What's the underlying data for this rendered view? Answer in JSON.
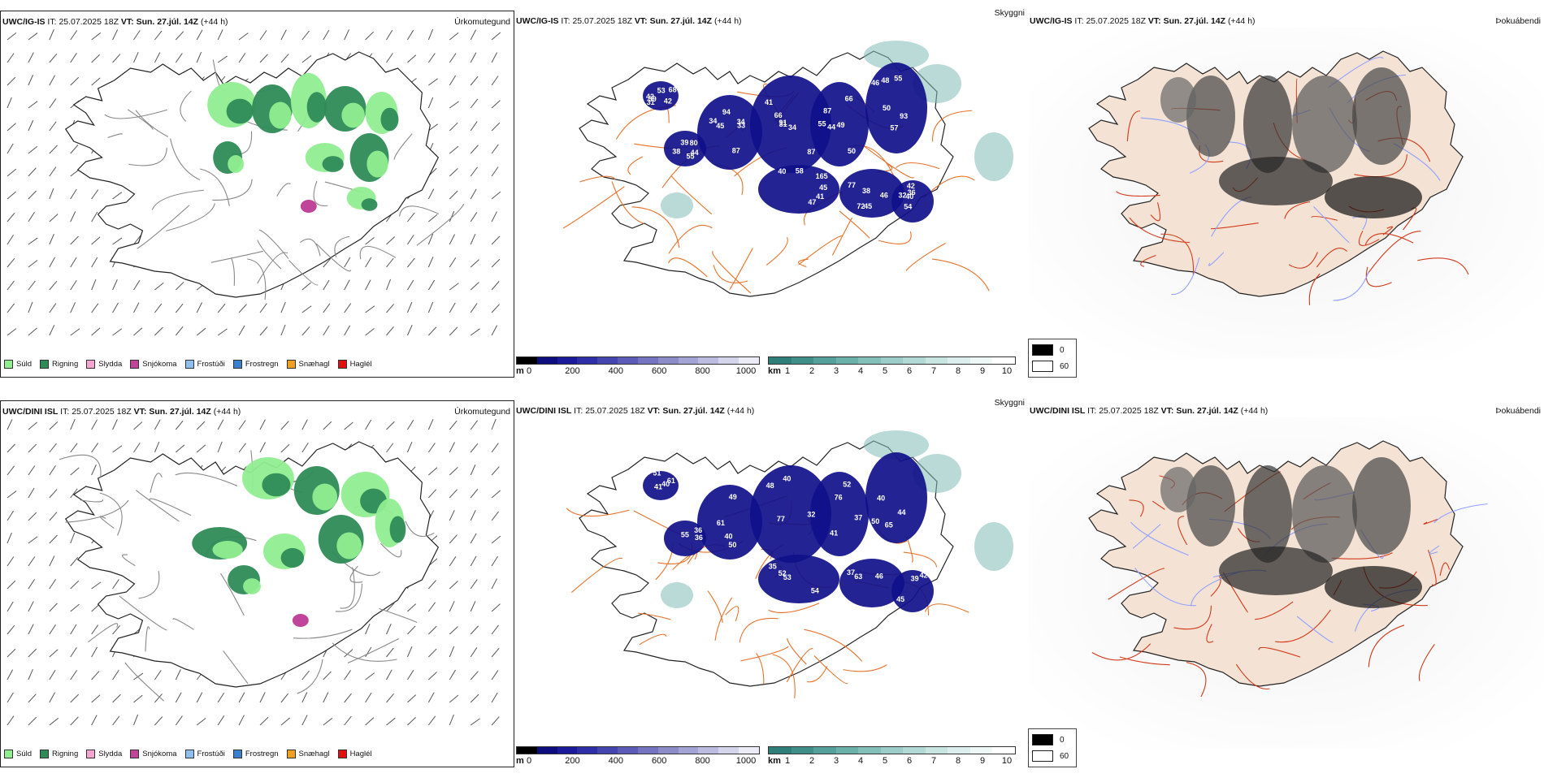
{
  "panels": [
    {
      "model": "UWC/IG-IS",
      "it_label": "IT:",
      "it_value": "25.07.2025 18Z",
      "vt_label": "VT:",
      "vt_value": "Sun. 27.júl. 14Z",
      "lead": "(+44 h)",
      "precip_title": "Úrkomutegund",
      "cloud_title": "Skyggni",
      "fog_title": "Þokuábendi",
      "cloud_labels": [
        "39",
        "87",
        "34",
        "55",
        "48",
        "40",
        "45",
        "40",
        "38",
        "53",
        "94",
        "87",
        "66",
        "93",
        "58",
        "38",
        "36",
        "39",
        "42",
        "34",
        "41",
        "44",
        "46",
        "47",
        "72",
        "42",
        "55",
        "68",
        "33",
        "66",
        "50",
        "50",
        "41",
        "77",
        "54",
        "80",
        "42",
        "45",
        "91",
        "87",
        "57",
        "45",
        "46",
        "32",
        "44",
        "31",
        "34",
        "31",
        "49",
        "55",
        "165"
      ]
    },
    {
      "model": "UWC/DINI ISL",
      "it_label": "IT:",
      "it_value": "25.07.2025 18Z",
      "vt_label": "VT:",
      "vt_value": "Sun. 27.júl. 14Z",
      "lead": "(+44 h)",
      "precip_title": "Úrkomutegund",
      "cloud_title": "Skyggni",
      "fog_title": "Þokuábendi",
      "cloud_labels": [
        "41",
        "61",
        "32",
        "76",
        "40",
        "53",
        "63",
        "45",
        "36",
        "61",
        "40",
        "48",
        "37",
        "44",
        "52",
        "46",
        "42",
        "55",
        "51",
        "50",
        "77",
        "41",
        "50",
        "35",
        "37",
        "39",
        "36",
        "40",
        "49",
        "40",
        "52",
        "65",
        "54"
      ]
    }
  ],
  "precip_legend": [
    {
      "label": "Súld",
      "color": "#90ee90"
    },
    {
      "label": "Rigning",
      "color": "#2e8b57"
    },
    {
      "label": "Slydda",
      "color": "#f4a6cf"
    },
    {
      "label": "Snjókoma",
      "color": "#c0449a"
    },
    {
      "label": "Frostúði",
      "color": "#8fbfef"
    },
    {
      "label": "Frostregn",
      "color": "#3a7fcf"
    },
    {
      "label": "Snæhagl",
      "color": "#f0a020"
    },
    {
      "label": "Haglél",
      "color": "#e01010"
    }
  ],
  "ceiling_scale": {
    "unit": "m",
    "ticks": [
      "0",
      "200",
      "400",
      "600",
      "800",
      "1000"
    ],
    "colors": [
      "#000000",
      "#0d0d80",
      "#1a1a9a",
      "#2e2ea8",
      "#4545b0",
      "#5c5cb8",
      "#7474c0",
      "#8c8cc8",
      "#a4a4d4",
      "#bcbce0",
      "#d4d4ea",
      "#ececf6"
    ]
  },
  "visibility_scale": {
    "unit": "km",
    "ticks": [
      "1",
      "2",
      "3",
      "4",
      "5",
      "6",
      "7",
      "8",
      "9",
      "10"
    ],
    "colors": [
      "#2f7f78",
      "#3f8f88",
      "#55a09a",
      "#6cb0aa",
      "#84c0ba",
      "#9ccdc8",
      "#b2d9d5",
      "#c8e5e2",
      "#dcefee",
      "#eef8f7",
      "#ffffff"
    ]
  },
  "fog_legend": [
    {
      "label": "0",
      "color": "#000000"
    },
    {
      "label": "60",
      "color": "#ffffff"
    }
  ],
  "colors": {
    "land_fog": "#f4e3d4",
    "roads": "#e8722a",
    "coast": "#222222",
    "cloud_blob": "#10108a",
    "vis_blob": "#7fbcb6",
    "rain": "#2e8b57",
    "drizzle": "#90ee90",
    "snow": "#c0449a"
  }
}
